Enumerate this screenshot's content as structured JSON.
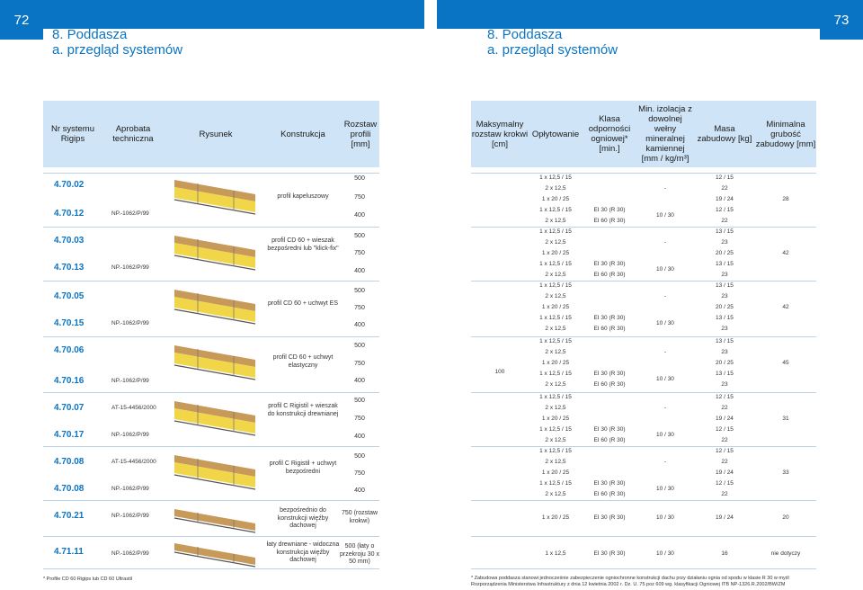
{
  "pages": {
    "left": "72",
    "right": "73"
  },
  "title": {
    "left_l1": "8.  Poddasza",
    "left_l2": "a.  przegląd systemów",
    "right_l1": "8.  Poddasza",
    "right_l2": "a.  przegląd systemów"
  },
  "head_left": [
    "Nr systemu Rigips",
    "Aprobata techniczna",
    "Rysunek",
    "Konstrukcja",
    "Rozstaw profili [mm]"
  ],
  "head_right": [
    "Maksymalny rozstaw krokwi [cm]",
    "Opłytowanie",
    "Klasa odporności ogniowej* [min.]",
    "Min. izolacja z dowolnej wełny mineralnej kamiennej [mm / kg/m³]",
    "Masa zabudowy [kg]",
    "Minimalna grubość zabudowy [mm]"
  ],
  "systems": [
    "4.70.02",
    "4.70.12",
    "4.70.03",
    "4.70.13",
    "4.70.05",
    "4.70.15",
    "4.70.06",
    "4.70.16",
    "4.70.07",
    "4.70.17",
    "4.70.08",
    "4.70.08",
    "4.70.21",
    "4.71.11"
  ],
  "aprobata": [
    "NP.-1062/P/99",
    "NP.-1062/P/99",
    "NP.-1062/P/99",
    "NP.-1062/P/99",
    "AT-15-4456/2000",
    "NP.-1062/P/99",
    "AT-15-4456/2000",
    "NP.-1062/P/99",
    "NP.-1062/P/99",
    "NP.-1062/P/99"
  ],
  "konstrukcja": [
    "profil kapeluszowy",
    "profil CD 60 + wieszak bezpośredni lub \"klick-fix\"",
    "profil CD 60 + uchwyt ES",
    "profil CD 60 + uchwyt elastyczny",
    "profil C Rigistil + wieszak do konstrukcji drewnianej",
    "profil C Rigistil + uchwyt bezpośredni",
    "bezpośrednio do konstrukcji więźby dachowej",
    "łaty drewniane - widoczna konstrukcja więźby dachowej"
  ],
  "rozstaw": [
    "500",
    "750",
    "400",
    "500",
    "750",
    "400",
    "500",
    "750",
    "400",
    "500",
    "750",
    "400",
    "500",
    "750",
    "400",
    "500",
    "750",
    "400",
    "750 (rozstaw krokwi)",
    "500 (łaty o przekroju 30 x 50 mm)"
  ],
  "krokwie": "100",
  "oplyt": [
    "1 x 12,5 / 15",
    "2 x 12,5",
    "1 x 20 / 25",
    "1 x 12,5 / 15",
    "2 x 12,5"
  ],
  "klasa": [
    "-",
    "EI 30 (R 30)",
    "EI 60 (R 30)"
  ],
  "izol": [
    "-",
    "10 / 30"
  ],
  "masa": [
    [
      "12 / 15",
      "22",
      "19 / 24",
      "12 / 15",
      "22"
    ],
    [
      "13 / 15",
      "23",
      "20 / 25",
      "13 / 15",
      "23"
    ],
    [
      "13 / 15",
      "23",
      "20 / 25",
      "13 / 15",
      "23"
    ],
    [
      "13 / 15",
      "23",
      "20 / 25",
      "13 / 15",
      "23"
    ],
    [
      "12 / 15",
      "22",
      "19 / 24",
      "12 / 15",
      "22"
    ],
    [
      "12 / 15",
      "22",
      "19 / 24",
      "12 / 15",
      "22"
    ]
  ],
  "grub": [
    "28",
    "42",
    "42",
    "45",
    "31",
    "33"
  ],
  "row21": {
    "opl": "1 x 20 / 25",
    "kl": "EI 30 (R 30)",
    "iz": "10 / 30",
    "ma": "19 / 24",
    "gr": "20"
  },
  "row11": {
    "opl": "1 x 12,5",
    "kl": "EI 30 (R 30)",
    "iz": "10 / 30",
    "ma": "16",
    "gr": "nie dotyczy"
  },
  "footnote_left": "* Profile CD 60 Rigips lub CD 60 Ultrastil",
  "footnote_right": "* Zabudowa poddasza stanowi jednocześnie zabezpieczenie ogniochronne konstrukcji dachu przy działaniu ognia od spodu w klasie R 30 w myśl Rozporządzenia Ministerstwa Infrastruktury z dnia 12 kwietnia 2002 r. Dz. U. 75 poz 609 wg. klasyfikacji Ogniowej ITB NP-1326.R.2002/BW/ZM",
  "colors": {
    "accent": "#0a74c4",
    "header_bg": "#cfe4f6",
    "insulation": "#f2d64a",
    "wood": "#c89a5a"
  }
}
